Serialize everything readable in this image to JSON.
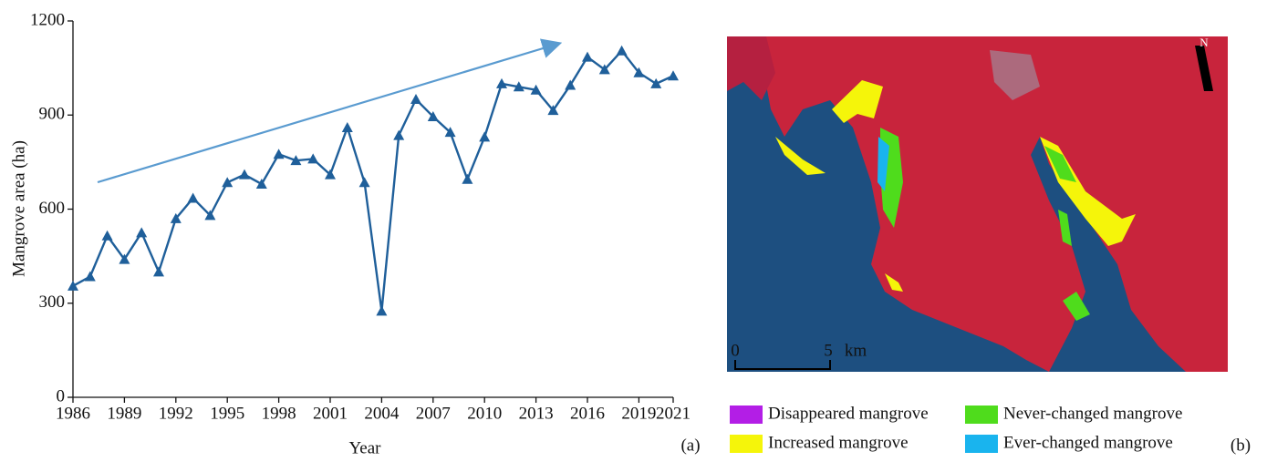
{
  "chart_data": {
    "type": "line",
    "x_label": "Year",
    "y_label": "Mangrove area (ha)",
    "panel_label": "(a)",
    "x": [
      1986,
      1987,
      1988,
      1989,
      1990,
      1991,
      1992,
      1993,
      1994,
      1995,
      1996,
      1997,
      1998,
      1999,
      2000,
      2001,
      2002,
      2003,
      2004,
      2005,
      2006,
      2007,
      2008,
      2009,
      2010,
      2011,
      2012,
      2013,
      2014,
      2015,
      2016,
      2017,
      2018,
      2019,
      2020,
      2021
    ],
    "series": [
      {
        "color": "#1f5f9a",
        "values": [
          355,
          385,
          515,
          440,
          525,
          400,
          570,
          635,
          580,
          685,
          710,
          680,
          775,
          755,
          760,
          710,
          860,
          685,
          275,
          835,
          950,
          895,
          845,
          695,
          830,
          1000,
          990,
          980,
          915,
          995,
          1085,
          1045,
          1105,
          1035,
          1000,
          1025
        ]
      }
    ],
    "xlim": [
      1986,
      2021
    ],
    "xticks": [
      1986,
      1989,
      1992,
      1995,
      1998,
      2001,
      2004,
      2007,
      2010,
      2013,
      2016,
      2019,
      2021
    ],
    "ylim": [
      0,
      1200
    ],
    "yticks": [
      0,
      300,
      600,
      900,
      1200
    ],
    "grid": false
  },
  "map": {
    "panel_label": "(b)",
    "north": "N",
    "scale": [
      "0",
      "5",
      "km"
    ],
    "legend": [
      {
        "label": "Disappeared mangrove",
        "color": "#b31ee6"
      },
      {
        "label": "Never-changed mangrove",
        "color": "#4fdc1c"
      },
      {
        "label": "Increased mangrove",
        "color": "#f5f50a"
      },
      {
        "label": "Ever-changed mangrove",
        "color": "#19b4ee"
      }
    ]
  }
}
